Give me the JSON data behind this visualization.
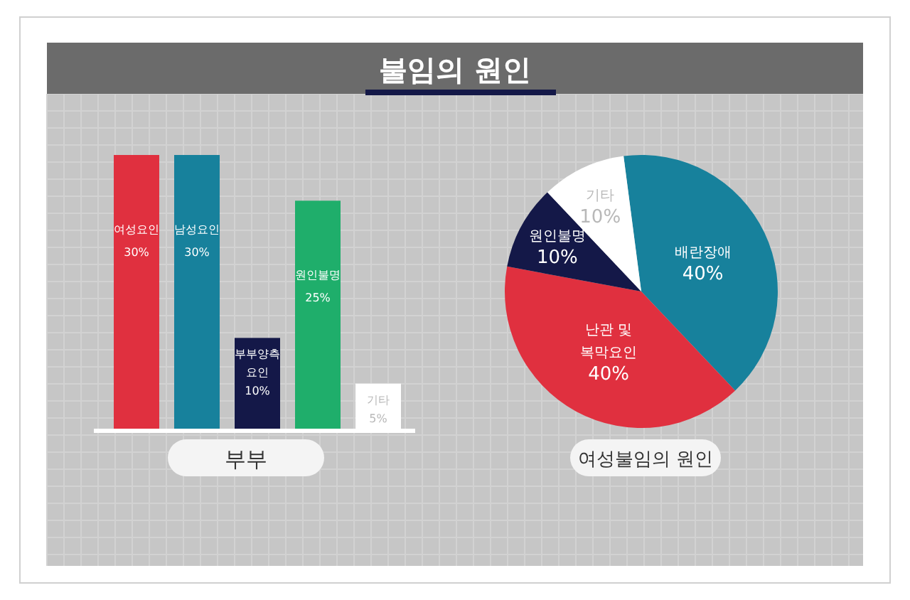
{
  "chart_data": [
    {
      "type": "bar",
      "title": "불임의 원인",
      "xlabel": "부부",
      "grid": true,
      "categories": [
        "여성요인",
        "남성요인",
        "부부양측 요인",
        "원인불명",
        "기타"
      ],
      "values": [
        30,
        30,
        10,
        25,
        5
      ],
      "value_labels": [
        "30%",
        "30%",
        "10%",
        "25%",
        "5%"
      ],
      "colors": [
        "#e0303f",
        "#17819c",
        "#141848",
        "#1fae6b",
        "#ffffff"
      ]
    },
    {
      "type": "pie",
      "title": "여성불임의 원인",
      "categories": [
        "배란장애",
        "난관 및 복막요인",
        "원인불명",
        "기타"
      ],
      "values": [
        40,
        40,
        10,
        10
      ],
      "value_labels": [
        "40%",
        "40%",
        "10%",
        "10%"
      ],
      "colors": [
        "#17819c",
        "#e0303f",
        "#141848",
        "#ffffff"
      ]
    }
  ]
}
